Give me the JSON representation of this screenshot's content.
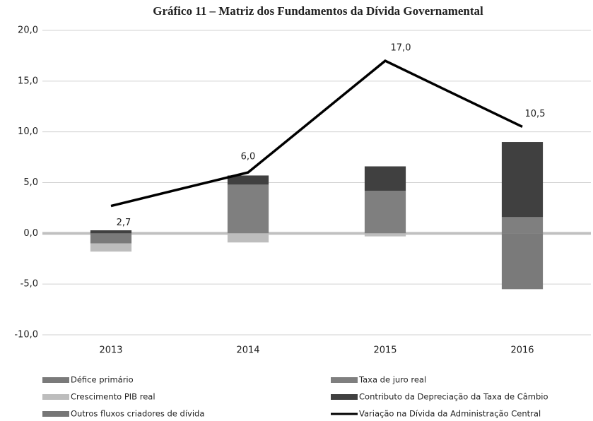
{
  "chart_data": {
    "type": "bar",
    "title": "Gráfico 11 – Matriz dos Fundamentos da Dívida Governamental",
    "categories": [
      "2013",
      "2014",
      "2015",
      "2016"
    ],
    "ylim": [
      -10,
      20
    ],
    "yticks": [
      {
        "value": -10,
        "label": "-10,0"
      },
      {
        "value": -5,
        "label": "-5,0"
      },
      {
        "value": 0,
        "label": "0,0"
      },
      {
        "value": 5,
        "label": "5,0"
      },
      {
        "value": 10,
        "label": "10,0"
      },
      {
        "value": 15,
        "label": "15,0"
      },
      {
        "value": 20,
        "label": "20,0"
      }
    ],
    "grid": true,
    "series": [
      {
        "name": "Défice primário",
        "color": "#7a7a7a",
        "values": [
          -1.0,
          0,
          0,
          -5.5
        ]
      },
      {
        "name": "Taxa de juro real",
        "color": "#7f7f7f",
        "values": [
          0,
          4.8,
          4.2,
          1.6
        ]
      },
      {
        "name": "Crescimento PIB real",
        "color": "#bdbdbd",
        "values": [
          -0.8,
          -0.9,
          -0.3,
          0
        ]
      },
      {
        "name": "Contributo da Depreciação da Taxa de Câmbio",
        "color": "#404040",
        "values": [
          0.3,
          0.9,
          2.4,
          7.4
        ]
      },
      {
        "name": "Outros fluxos criadores de dívida",
        "color": "#767676",
        "values": [
          0,
          0,
          0,
          0
        ]
      },
      {
        "name": "Variação na Dívida da Administração Central",
        "color": "#000000",
        "type": "line",
        "values": [
          2.7,
          6.0,
          17.0,
          10.5
        ],
        "value_labels": [
          "2,7",
          "6,0",
          "17,0",
          "10,5"
        ]
      }
    ]
  }
}
